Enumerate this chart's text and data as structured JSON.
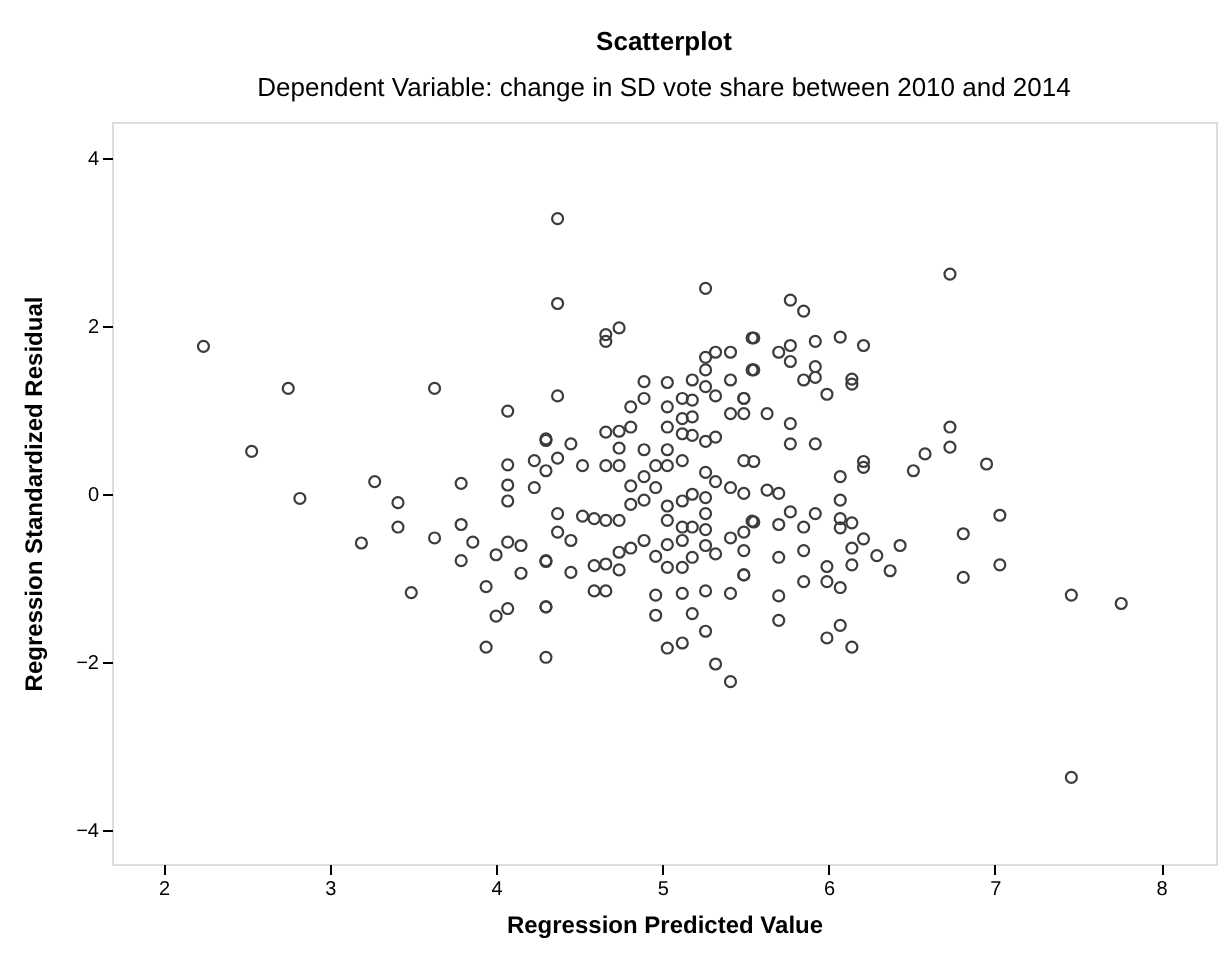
{
  "chart_data": {
    "type": "scatter",
    "title": "Scatterplot",
    "subtitle": "Dependent Variable: change in SD vote share between 2010 and 2014",
    "xlabel": "Regression Predicted Value",
    "ylabel": "Regression Standardized Residual",
    "xlim": [
      1.69,
      8.33
    ],
    "ylim": [
      -4.4,
      4.43
    ],
    "xticks": [
      2,
      3,
      4,
      5,
      6,
      7,
      8
    ],
    "yticks": [
      -4,
      -2,
      0,
      2,
      4
    ],
    "grid": false,
    "marker": "circle",
    "series": [
      {
        "color": "#3c3c3c",
        "x": [
          2.24,
          2.75,
          2.53,
          2.82,
          3.63,
          4.07,
          3.27,
          3.41,
          3.41,
          3.19,
          3.49,
          3.63,
          3.79,
          3.79,
          3.86,
          3.79,
          3.94,
          4.0,
          3.94,
          4.07,
          4.07,
          4.07,
          4.23,
          4.23,
          4.3,
          4.3,
          4.07,
          4.0,
          4.15,
          4.15,
          4.07,
          4.3,
          4.3,
          4.3,
          4.37,
          4.37,
          4.37,
          5.26,
          4.66,
          4.74,
          4.66,
          4.3,
          4.45,
          4.37,
          4.52,
          4.37,
          4.37,
          4.45,
          4.45,
          4.3,
          4.3,
          4.52,
          4.59,
          4.66,
          4.59,
          4.59,
          4.66,
          4.66,
          4.74,
          4.74,
          4.81,
          4.89,
          4.74,
          4.81,
          4.89,
          4.66,
          4.74,
          4.81,
          4.66,
          4.74,
          4.74,
          4.81,
          4.81,
          4.89,
          4.89,
          4.89,
          4.89,
          4.96,
          4.96,
          5.03,
          5.03,
          5.03,
          5.03,
          5.03,
          5.03,
          5.03,
          5.03,
          5.03,
          4.96,
          4.96,
          4.96,
          5.03,
          5.12,
          5.12,
          5.12,
          5.12,
          5.12,
          5.12,
          5.12,
          5.12,
          5.12,
          5.12,
          5.18,
          5.18,
          5.18,
          5.18,
          5.18,
          5.18,
          5.18,
          5.18,
          5.26,
          5.26,
          5.26,
          5.26,
          5.26,
          5.26,
          5.26,
          5.26,
          5.26,
          5.26,
          5.26,
          5.32,
          5.32,
          5.32,
          5.32,
          5.32,
          5.32,
          5.41,
          5.41,
          5.41,
          5.41,
          5.41,
          5.41,
          5.41,
          5.49,
          5.49,
          5.49,
          5.49,
          5.49,
          5.49,
          5.54,
          5.54,
          5.54,
          6.73,
          5.77,
          5.85,
          5.55,
          5.7,
          5.77,
          5.92,
          6.07,
          6.21,
          5.77,
          5.92,
          5.55,
          5.85,
          5.92,
          5.99,
          6.14,
          6.14,
          5.49,
          5.63,
          5.77,
          5.77,
          5.92,
          5.55,
          6.07,
          6.21,
          6.21,
          6.51,
          6.58,
          6.73,
          6.73,
          6.95,
          5.63,
          5.7,
          6.07,
          5.77,
          5.92,
          5.55,
          5.7,
          5.85,
          6.07,
          6.14,
          6.07,
          6.21,
          6.14,
          6.43,
          6.29,
          6.37,
          6.14,
          5.99,
          5.85,
          5.7,
          5.49,
          5.49,
          5.85,
          5.99,
          6.07,
          5.7,
          5.7,
          5.99,
          6.07,
          6.14,
          6.81,
          6.81,
          7.03,
          7.03,
          7.46,
          7.76,
          7.46
        ],
        "values": [
          1.76,
          1.26,
          0.51,
          -0.05,
          1.26,
          0.99,
          0.15,
          -0.1,
          -0.39,
          -0.58,
          -1.17,
          -0.52,
          0.13,
          -0.36,
          -0.57,
          -0.79,
          -1.1,
          -1.45,
          -1.82,
          0.35,
          0.11,
          -0.08,
          0.4,
          0.08,
          0.64,
          0.28,
          -0.57,
          -0.72,
          -0.61,
          -0.94,
          -1.36,
          -0.8,
          -1.34,
          -1.94,
          3.28,
          2.27,
          1.17,
          2.45,
          1.9,
          1.98,
          1.82,
          0.66,
          0.6,
          0.43,
          0.34,
          -0.23,
          -0.45,
          -0.55,
          -0.93,
          -0.79,
          -1.34,
          -0.26,
          -0.29,
          -0.31,
          -0.85,
          -1.15,
          -1.15,
          -0.83,
          -0.9,
          -0.69,
          -0.64,
          -0.55,
          -0.31,
          -0.12,
          -0.07,
          0.34,
          0.34,
          0.1,
          0.74,
          0.75,
          0.55,
          1.04,
          0.8,
          1.14,
          1.34,
          0.53,
          0.21,
          0.34,
          0.08,
          1.33,
          1.04,
          0.8,
          0.53,
          0.34,
          -0.14,
          -0.31,
          -0.6,
          -0.87,
          -0.74,
          -1.2,
          -1.44,
          -1.83,
          -1.77,
          -1.18,
          -0.87,
          -0.55,
          -0.39,
          -0.08,
          0.4,
          0.72,
          0.9,
          1.14,
          1.36,
          1.12,
          0.92,
          0.7,
          0.0,
          -0.39,
          -0.75,
          -1.42,
          1.63,
          1.48,
          1.28,
          0.63,
          0.26,
          -0.04,
          -0.23,
          -0.42,
          -0.61,
          -1.15,
          -1.63,
          1.69,
          1.17,
          0.68,
          0.15,
          -0.71,
          -2.02,
          -2.23,
          1.69,
          1.36,
          0.96,
          0.08,
          -0.52,
          -1.18,
          1.14,
          0.96,
          0.4,
          0.01,
          -0.45,
          -0.96,
          1.86,
          1.48,
          -0.32,
          2.62,
          2.31,
          2.18,
          1.86,
          1.69,
          1.77,
          1.82,
          1.87,
          1.77,
          1.58,
          1.52,
          1.48,
          1.36,
          1.39,
          1.19,
          1.37,
          1.31,
          1.14,
          0.96,
          0.84,
          0.6,
          0.6,
          0.39,
          0.21,
          0.39,
          0.32,
          0.28,
          0.48,
          0.56,
          0.8,
          0.36,
          0.05,
          0.01,
          -0.07,
          -0.21,
          -0.23,
          -0.33,
          -0.36,
          -0.39,
          -0.29,
          -0.34,
          -0.4,
          -0.53,
          -0.64,
          -0.61,
          -0.73,
          -0.91,
          -0.84,
          -0.86,
          -0.67,
          -0.75,
          -0.67,
          -0.96,
          -1.04,
          -1.04,
          -1.11,
          -1.21,
          -1.5,
          -1.71,
          -1.56,
          -1.82,
          -0.47,
          -0.99,
          -0.25,
          -0.84,
          -1.2,
          -1.3,
          -3.37
        ]
      }
    ]
  }
}
